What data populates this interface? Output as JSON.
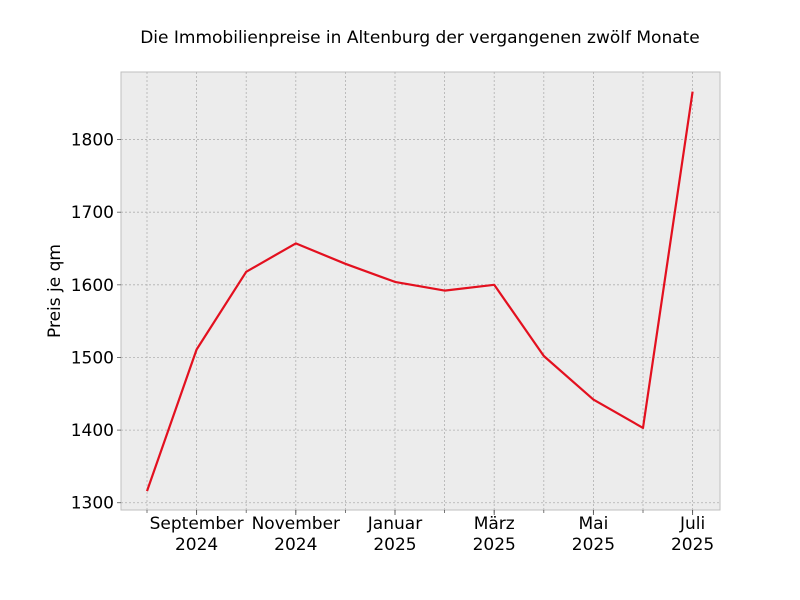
{
  "chart_data": {
    "type": "line",
    "title": "Die Immobilienpreise in Altenburg der vergangenen zwölf Monate",
    "xlabel": "",
    "ylabel": "Preis je qm",
    "x": [
      "2024-08",
      "2024-09",
      "2024-10",
      "2024-11",
      "2024-12",
      "2025-01",
      "2025-02",
      "2025-03",
      "2025-04",
      "2025-05",
      "2025-06",
      "2025-07"
    ],
    "values": [
      1316,
      1511,
      1618,
      1657,
      1629,
      1604,
      1592,
      1600,
      1502,
      1442,
      1403,
      1866
    ],
    "ylim": [
      1290,
      1893
    ],
    "yticks": [
      1300,
      1400,
      1500,
      1600,
      1700,
      1800
    ],
    "xtick_labels": [
      {
        "x": "2024-09",
        "line1": "September",
        "line2": "2024"
      },
      {
        "x": "2024-11",
        "line1": "November",
        "line2": "2024"
      },
      {
        "x": "2025-01",
        "line1": "Januar",
        "line2": "2025"
      },
      {
        "x": "2025-03",
        "line1": "März",
        "line2": "2025"
      },
      {
        "x": "2025-05",
        "line1": "Mai",
        "line2": "2025"
      },
      {
        "x": "2025-07",
        "line1": "Juli",
        "line2": "2025"
      }
    ],
    "line_color": "#e3101f",
    "background_color": "#ececec",
    "grid": true
  }
}
